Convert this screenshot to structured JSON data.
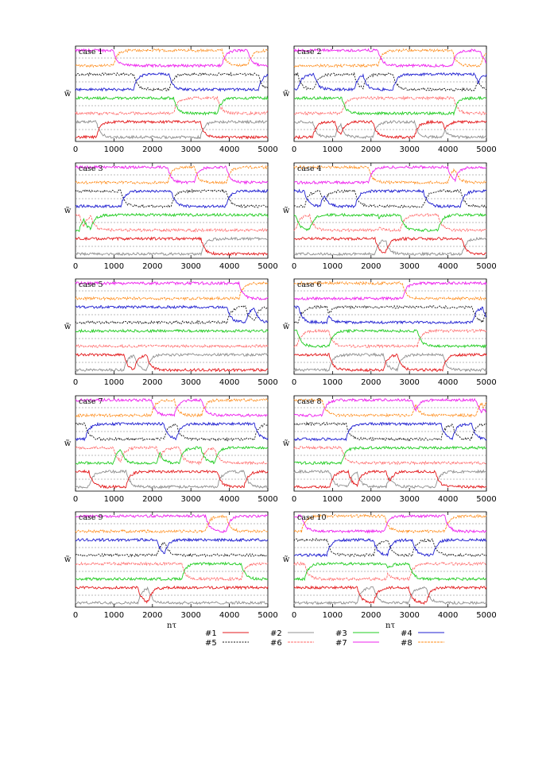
{
  "chart_data": {
    "type": "line",
    "ylabel": "w̃",
    "xlabel": "nτ",
    "x_ticks": [
      0,
      1000,
      2000,
      3000,
      4000,
      5000
    ],
    "xlim": [
      0,
      5000
    ],
    "legend": {
      "placement": "bottom-center",
      "entries": [
        "#1",
        "#2",
        "#3",
        "#4",
        "#5",
        "#6",
        "#7",
        "#8"
      ]
    },
    "colors": {
      "#1": "#e31a1c",
      "#2": "#909090",
      "#3": "#22cc22",
      "#4": "#1f1fd0",
      "#5": "#111111",
      "#6": "#ff6a6a",
      "#7": "#ee22ee",
      "#8": "#ff8c1a"
    },
    "panels": [
      {
        "title": "case 1"
      },
      {
        "title": "case 2"
      },
      {
        "title": "case 3"
      },
      {
        "title": "case 4"
      },
      {
        "title": "case 5"
      },
      {
        "title": "case 6"
      },
      {
        "title": "case 7"
      },
      {
        "title": "case 8"
      },
      {
        "title": "case 9"
      },
      {
        "title": "case 10"
      }
    ]
  }
}
